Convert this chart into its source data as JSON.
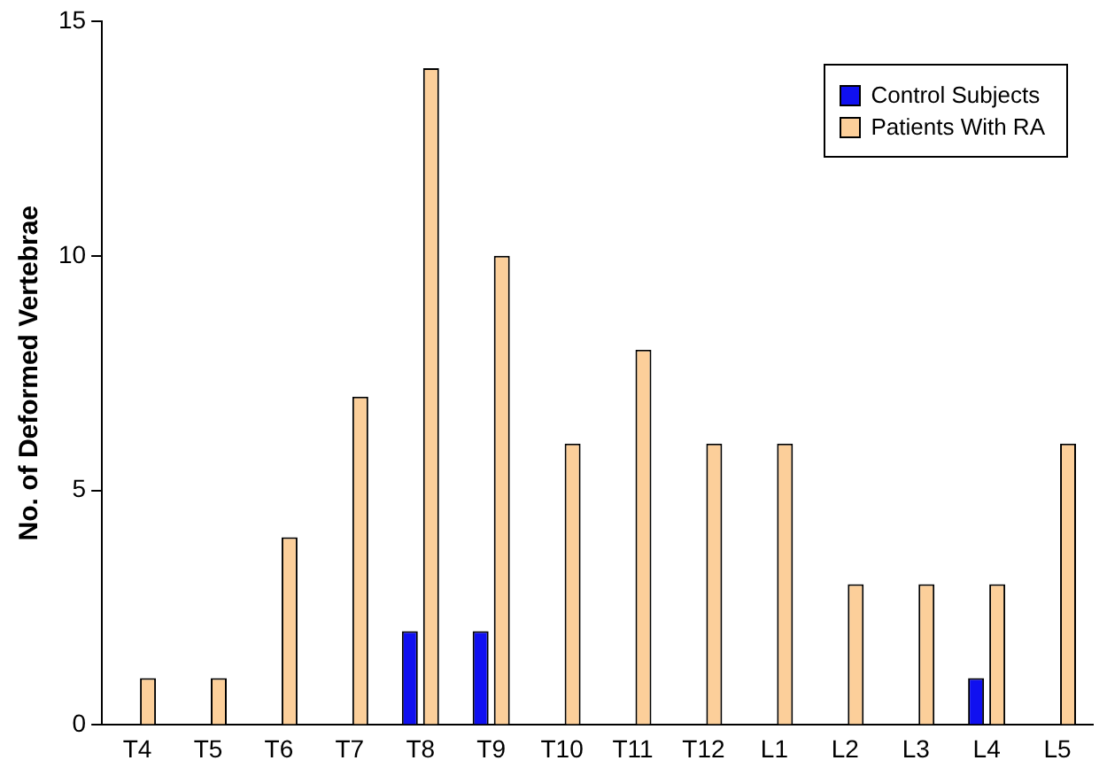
{
  "chart_data": {
    "type": "bar",
    "ylabel": "No. of Deformed Vertebrae",
    "categories": [
      "T4",
      "T5",
      "T6",
      "T7",
      "T8",
      "T9",
      "T10",
      "T11",
      "T12",
      "L1",
      "L2",
      "L3",
      "L4",
      "L5"
    ],
    "series": [
      {
        "name": "Control Subjects",
        "color": "#1010f0",
        "values": [
          0,
          0,
          0,
          0,
          2,
          2,
          0,
          0,
          0,
          0,
          0,
          0,
          1,
          0
        ]
      },
      {
        "name": "Patients With RA",
        "color": "#fccf9a",
        "values": [
          1,
          1,
          4,
          7,
          14,
          10,
          6,
          8,
          6,
          6,
          3,
          3,
          3,
          6
        ]
      }
    ],
    "ylim": [
      0,
      15
    ],
    "yticks": [
      0,
      5,
      10,
      15
    ],
    "grid": false,
    "legend": "top right"
  }
}
